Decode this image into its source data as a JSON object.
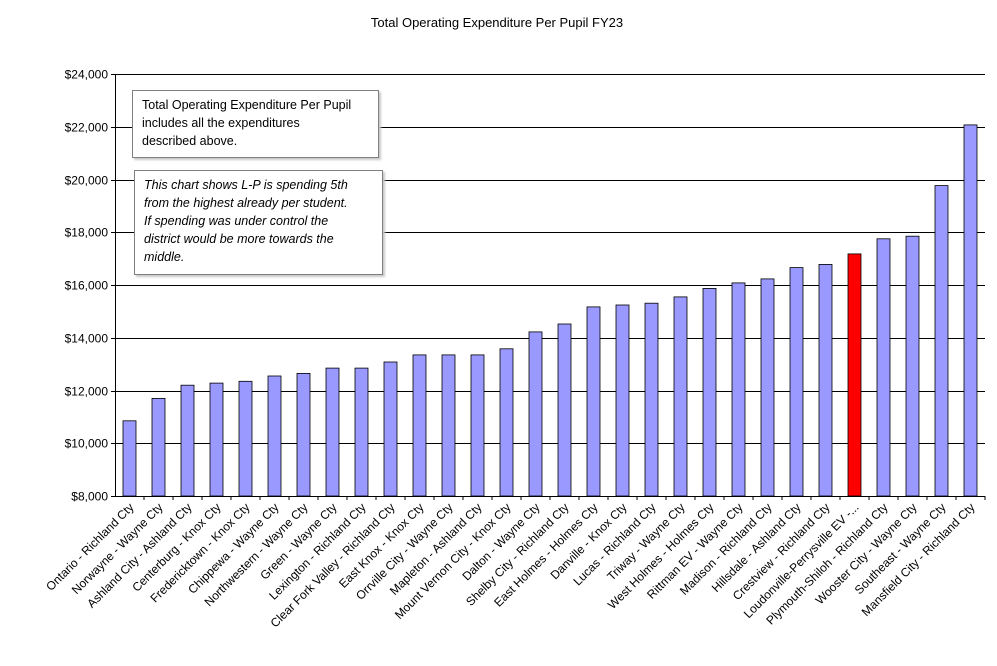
{
  "chart_data": {
    "type": "bar",
    "title": "Total Operating  Expenditure Per Pupil FY23",
    "xlabel": "",
    "ylabel": "",
    "ylim": [
      8000,
      24000
    ],
    "yticks": [
      8000,
      10000,
      12000,
      14000,
      16000,
      18000,
      20000,
      22000,
      24000
    ],
    "ytick_labels": [
      "$8,000",
      "$10,000",
      "$12,000",
      "$14,000",
      "$16,000",
      "$18,000",
      "$20,000",
      "$22,000",
      "$24,000"
    ],
    "grid": true,
    "categories": [
      "Ontario - Richland Cty",
      "Norwayne - Wayne Cty",
      "Ashland City - Ashland Cty",
      "Centerburg - Knox Cty",
      "Fredericktown - Knox Cty",
      "Chippewa - Wayne Cty",
      "Northwestern - Wayne Cty",
      "Green - Wayne Cty",
      "Lexington - Richland Cty",
      "Clear Fork Valley - Richland Cty",
      "East Knox - Knox Cty",
      "Orrville City - Wayne Cty",
      "Mapleton - Ashland Cty",
      "Mount Vernon City - Knox Cty",
      "Dalton - Wayne Cty",
      "Shelby City - Richland Cty",
      "East Holmes - Holmes Cty",
      "Danville - Knox Cty",
      "Lucas - Richland Cty",
      "Triway - Wayne Cty",
      "West Holmes - Holmes Cty",
      "Rittman EV - Wayne Cty",
      "Madison - Richland Cty",
      "Hillsdale - Ashland Cty",
      "Crestview - Richland Cty",
      "Loudonville-Perrysville EV -...",
      "Plymouth-Shiloh - Richland Cty",
      "Wooster City - Wayne Cty",
      "Southeast - Wayne Cty",
      "Mansfield City - Richland Cty"
    ],
    "values": [
      10850,
      11700,
      12200,
      12280,
      12350,
      12550,
      12650,
      12850,
      12850,
      13080,
      13350,
      13350,
      13350,
      13580,
      14220,
      14520,
      15170,
      15240,
      15310,
      15550,
      15870,
      16080,
      16230,
      16660,
      16780,
      17180,
      17750,
      17850,
      19770,
      22070
    ],
    "highlight_index": 25,
    "colors": {
      "bar": "#9999FF",
      "highlight": "#FF0000",
      "bar_border": "#000000",
      "gridline": "#000000"
    },
    "annotations": [
      {
        "id": "note1",
        "style": "normal",
        "lines": [
          "Total Operating Expenditure Per Pupil",
          "includes all the expenditures",
          "described above."
        ]
      },
      {
        "id": "note2",
        "style": "italic",
        "lines": [
          "This chart shows L-P is spending 5th",
          "from the highest already per student.",
          "If spending was under control the",
          "district would be more towards the",
          "middle."
        ]
      }
    ]
  }
}
